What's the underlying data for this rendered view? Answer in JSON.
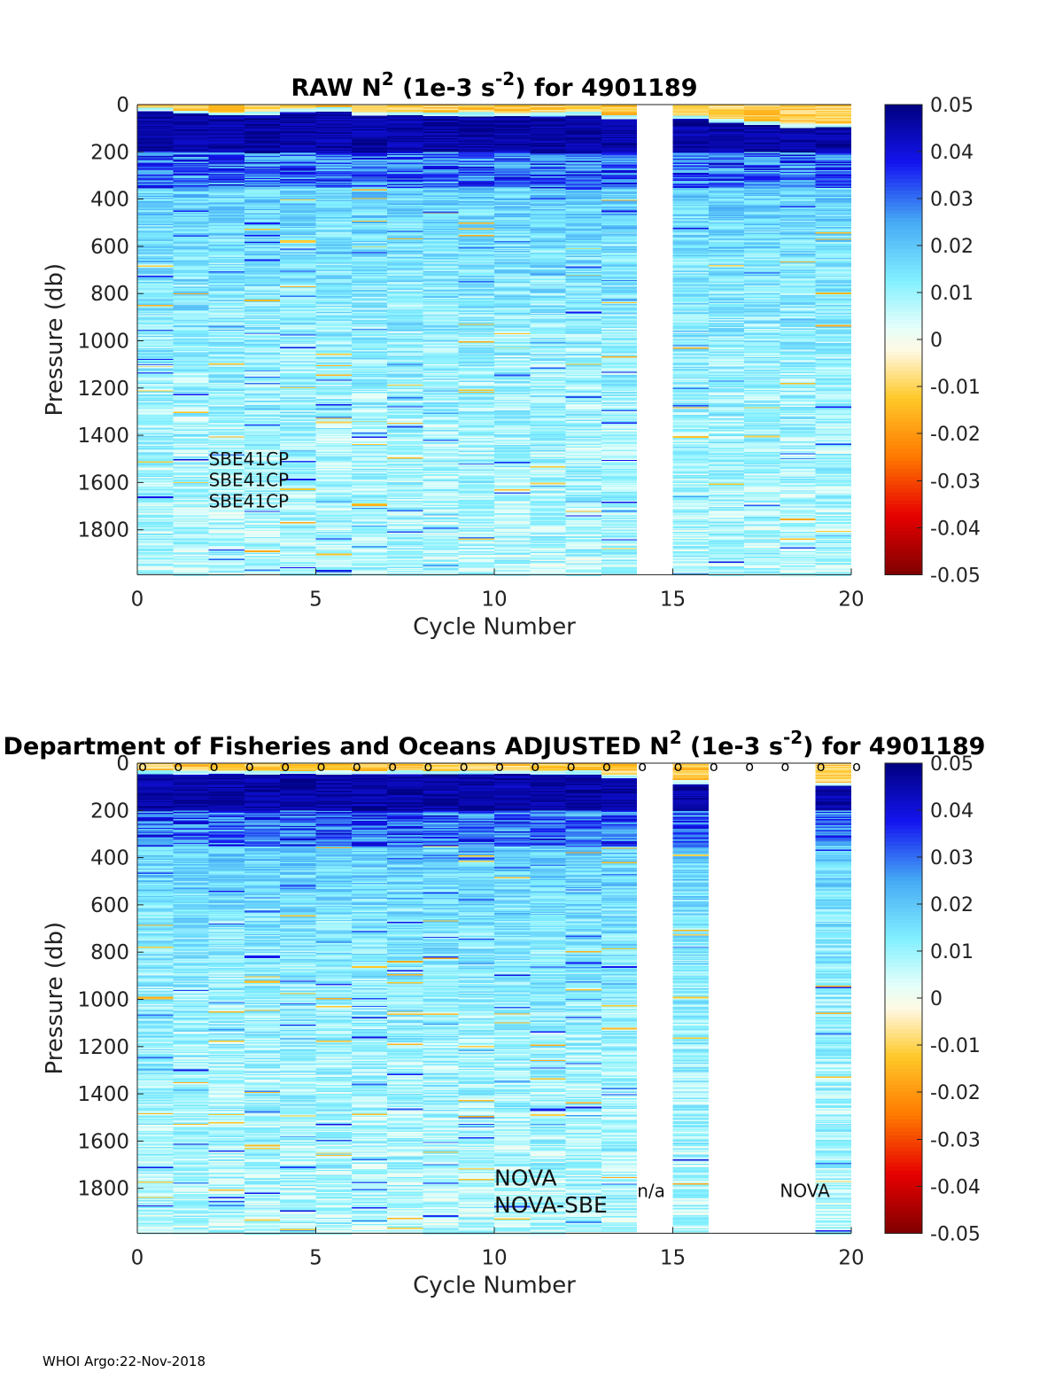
{
  "chart_data": [
    {
      "type": "heatmap",
      "title": {
        "prefix": "RAW N",
        "sup": "2",
        "mid": " (1e-3 s",
        "sup2": "-2",
        "suffix": ") for 4901189"
      },
      "xlabel": "Cycle Number",
      "ylabel": "Pressure (db)",
      "xlim": [
        0,
        20
      ],
      "ylim": [
        0,
        2000
      ],
      "y_reversed": true,
      "xticks": [
        0,
        5,
        10,
        15,
        20
      ],
      "yticks": [
        0,
        200,
        400,
        600,
        800,
        1000,
        1200,
        1400,
        1600,
        1800
      ],
      "cycles_with_data": [
        0,
        1,
        2,
        3,
        4,
        5,
        6,
        7,
        8,
        9,
        10,
        11,
        12,
        13,
        15,
        16,
        17,
        18,
        19
      ],
      "mixed_layer_depth_db": [
        10,
        20,
        30,
        25,
        15,
        10,
        30,
        30,
        30,
        30,
        30,
        30,
        30,
        45,
        45,
        60,
        70,
        80,
        80
      ],
      "colorbar": {
        "range": [
          -0.05,
          0.05
        ],
        "ticks": [
          0.05,
          0.04,
          0.03,
          0.02,
          0.01,
          0,
          -0.01,
          -0.02,
          -0.03,
          -0.04,
          -0.05
        ],
        "tick_labels": [
          "0.05",
          "0.04",
          "0.03",
          "0.02",
          "0.01",
          "0",
          "-0.01",
          "-0.02",
          "-0.03",
          "-0.04",
          "-0.05"
        ],
        "colormap": "jet-like with white near zero"
      },
      "annotations": [
        {
          "text": "SBE41CP",
          "x": 2,
          "y": 1500
        },
        {
          "text": "SBE41CP",
          "x": 2,
          "y": 1590
        },
        {
          "text": "SBE41CP",
          "x": 2,
          "y": 1680
        }
      ]
    },
    {
      "type": "heatmap",
      "title": {
        "prefix": "Department of Fisheries and Oceans  ADJUSTED N",
        "sup": "2",
        "mid": " (1e-3 s",
        "sup2": "-2",
        "suffix": ") for 4901189"
      },
      "xlabel": "Cycle Number",
      "ylabel": "Pressure (db)",
      "xlim": [
        0,
        20
      ],
      "ylim": [
        0,
        2000
      ],
      "y_reversed": true,
      "xticks": [
        0,
        5,
        10,
        15,
        20
      ],
      "yticks": [
        0,
        200,
        400,
        600,
        800,
        1000,
        1200,
        1400,
        1600,
        1800
      ],
      "cycles_with_data": [
        0,
        1,
        2,
        3,
        4,
        5,
        6,
        7,
        8,
        9,
        10,
        11,
        12,
        13,
        15,
        19
      ],
      "mixed_layer_depth_db": [
        30,
        30,
        30,
        30,
        30,
        30,
        30,
        30,
        30,
        30,
        30,
        30,
        30,
        45,
        70,
        80
      ],
      "qc_marker_cycles": [
        0,
        1,
        2,
        3,
        4,
        5,
        6,
        7,
        8,
        9,
        10,
        11,
        12,
        13,
        14,
        15,
        16,
        17,
        18,
        19,
        20
      ],
      "qc_marker_symbol": "o",
      "colorbar": {
        "range": [
          -0.05,
          0.05
        ],
        "ticks": [
          0.05,
          0.04,
          0.03,
          0.02,
          0.01,
          0,
          -0.01,
          -0.02,
          -0.03,
          -0.04,
          -0.05
        ],
        "tick_labels": [
          "0.05",
          "0.04",
          "0.03",
          "0.02",
          "0.01",
          "0",
          "-0.01",
          "-0.02",
          "-0.03",
          "-0.04",
          "-0.05"
        ],
        "colormap": "jet-like with white near zero"
      },
      "annotations": [
        {
          "text": "NOVA",
          "x": 10,
          "y": 1755,
          "size": "large"
        },
        {
          "text": "NOVA-SBE",
          "x": 10,
          "y": 1870,
          "size": "large"
        },
        {
          "text": "n/a",
          "x": 14,
          "y": 1810,
          "size": "small"
        },
        {
          "text": "NOVA",
          "x": 18,
          "y": 1810,
          "size": "small"
        }
      ]
    }
  ],
  "footer": {
    "text": "WHOI Argo:22-Nov-2018"
  }
}
